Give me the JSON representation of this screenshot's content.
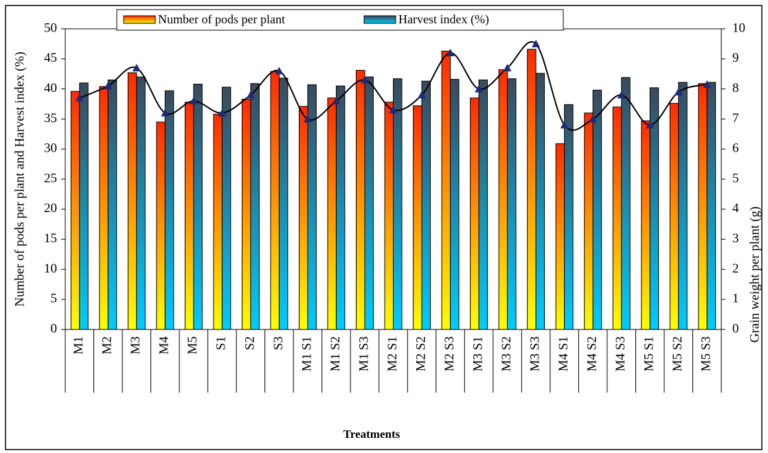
{
  "chart_data": {
    "type": "bar_line_dual_axis",
    "x_label": "Treatments",
    "y_label": "Number of pods per plant and Harvest index (%)",
    "y2_label": "Grain weight per plant (g)",
    "categories": [
      "M1",
      "M2",
      "M3",
      "M4",
      "M5",
      "S1",
      "S2",
      "S3",
      "M1 S1",
      "M1 S2",
      "M1 S3",
      "M2 S1",
      "M2 S2",
      "M2 S3",
      "M3 S1",
      "M3 S2",
      "M3 S3",
      "M4 S1",
      "M4 S2",
      "M4 S3",
      "M5 S1",
      "M5 S2",
      "M5 S3"
    ],
    "series": [
      {
        "name": "Number of pods per plant",
        "type": "bar",
        "color": "#ff2a00",
        "values": [
          39.6,
          40.4,
          42.7,
          34.5,
          37.8,
          35.8,
          38.3,
          42.9,
          37.1,
          38.5,
          43.1,
          37.8,
          37.2,
          46.3,
          38.5,
          43.2,
          46.6,
          30.9,
          36.0,
          37.0,
          34.7,
          37.6,
          40.9
        ]
      },
      {
        "name": "Harvest index (%)",
        "type": "bar",
        "color": "#3a4a5c",
        "values": [
          41.0,
          41.5,
          42.0,
          39.7,
          40.8,
          40.3,
          40.9,
          41.8,
          40.7,
          40.5,
          42.0,
          41.7,
          41.3,
          41.6,
          41.5,
          41.7,
          42.6,
          37.4,
          39.8,
          41.9,
          40.2,
          41.1,
          41.1
        ]
      },
      {
        "type": "line",
        "axis": "y2",
        "color": "#000000",
        "marker_color": "#1f2a7a",
        "values": [
          7.7,
          8.1,
          8.7,
          7.2,
          7.6,
          7.2,
          7.8,
          8.6,
          7.0,
          7.6,
          8.3,
          7.3,
          7.8,
          9.2,
          8.0,
          8.7,
          9.5,
          6.8,
          7.0,
          7.8,
          6.8,
          7.9,
          8.15
        ]
      }
    ],
    "ylim": [
      0,
      50
    ],
    "yticks": [
      0,
      5,
      10,
      15,
      20,
      25,
      30,
      35,
      40,
      45,
      50
    ],
    "y2lim": [
      0,
      10
    ],
    "y2ticks": [
      0,
      1,
      2,
      3,
      4,
      5,
      6,
      7,
      8,
      9,
      10
    ],
    "legend": "top"
  }
}
